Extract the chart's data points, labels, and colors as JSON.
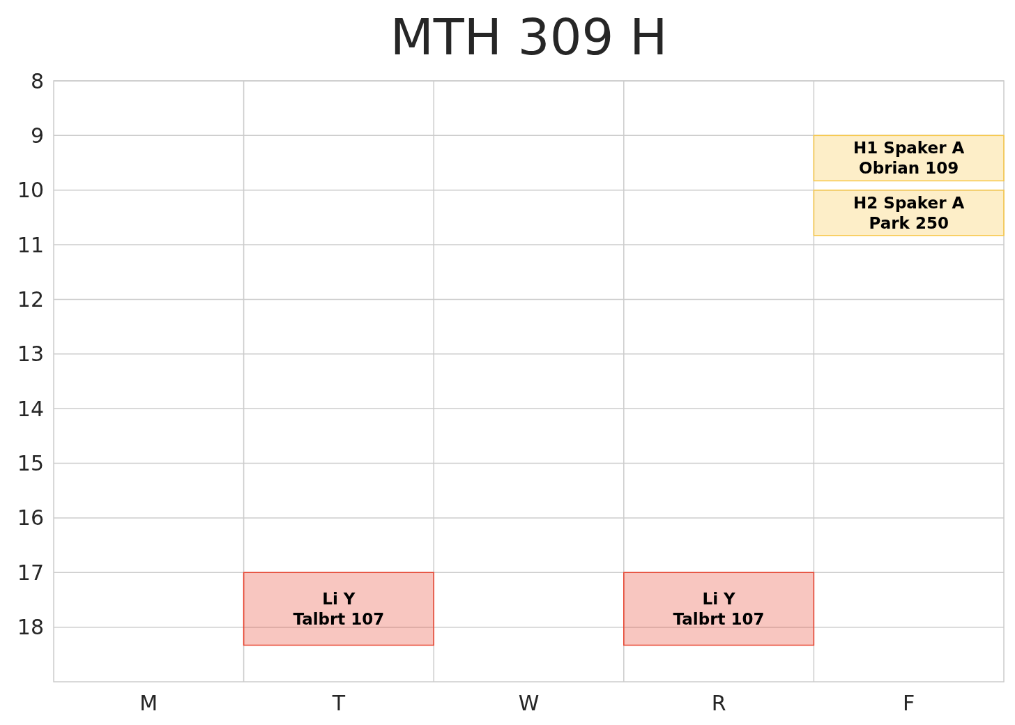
{
  "chart_data": {
    "type": "bar",
    "title": "MTH 309 H",
    "categories": [
      "M",
      "T",
      "W",
      "R",
      "F"
    ],
    "ylim": [
      19,
      8
    ],
    "yticks": [
      8,
      9,
      10,
      11,
      12,
      13,
      14,
      15,
      16,
      17,
      18
    ],
    "grid": true,
    "series": [
      {
        "color": "#e8432f",
        "base": [
          null,
          17,
          null,
          17,
          null
        ],
        "values": [
          null,
          1.33,
          null,
          1.33,
          null
        ],
        "value_labels": [
          null,
          "Li Y\nTalbrt 107",
          null,
          "Li Y\nTalbrt 107",
          null
        ]
      },
      {
        "color": "#f8c848",
        "base": [
          null,
          null,
          null,
          null,
          9
        ],
        "values": [
          null,
          null,
          null,
          null,
          0.83
        ],
        "value_labels": [
          null,
          null,
          null,
          null,
          "H1 Spaker A\nObrian 109"
        ]
      },
      {
        "color": "#f8c848",
        "base": [
          null,
          null,
          null,
          null,
          10
        ],
        "values": [
          null,
          null,
          null,
          null,
          0.83
        ],
        "value_labels": [
          null,
          null,
          null,
          null,
          "H2 Spaker A\nPark 250"
        ]
      }
    ]
  }
}
